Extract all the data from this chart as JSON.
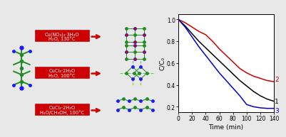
{
  "xlabel": "Time (min)",
  "ylabel": "C/C₀",
  "xlim": [
    0,
    140
  ],
  "ylim": [
    0.15,
    1.05
  ],
  "xticks": [
    0,
    20,
    40,
    60,
    80,
    100,
    120,
    140
  ],
  "yticks": [
    0.2,
    0.4,
    0.6,
    0.8,
    1.0
  ],
  "curve1_color": "#000000",
  "curve2_color": "#cc0000",
  "curve3_color": "#0000cc",
  "curve1_x": [
    0,
    10,
    20,
    30,
    40,
    50,
    60,
    70,
    80,
    90,
    100,
    110,
    120,
    130,
    140
  ],
  "curve1_y": [
    1.0,
    0.94,
    0.87,
    0.8,
    0.74,
    0.68,
    0.62,
    0.56,
    0.5,
    0.44,
    0.39,
    0.34,
    0.3,
    0.27,
    0.25
  ],
  "curve2_x": [
    0,
    10,
    20,
    30,
    40,
    50,
    60,
    70,
    80,
    90,
    100,
    110,
    120,
    130,
    140
  ],
  "curve2_y": [
    1.0,
    0.97,
    0.93,
    0.89,
    0.86,
    0.8,
    0.73,
    0.67,
    0.61,
    0.55,
    0.51,
    0.48,
    0.46,
    0.44,
    0.43
  ],
  "curve3_x": [
    0,
    10,
    20,
    30,
    40,
    50,
    60,
    70,
    80,
    90,
    100,
    110,
    120,
    130,
    140
  ],
  "curve3_y": [
    1.0,
    0.93,
    0.84,
    0.75,
    0.67,
    0.59,
    0.51,
    0.44,
    0.37,
    0.3,
    0.22,
    0.2,
    0.19,
    0.185,
    0.185
  ],
  "label1": "1",
  "label2": "2",
  "label3": "3",
  "bg_color": "#e8e8e8",
  "plot_bg": "#ffffff",
  "text_color": "#000000",
  "arrow_color": "#cc0000",
  "red_box_color": "#cc0000",
  "reagent1_top": "Cu(NO₃)₂·3H₂O",
  "reagent1_bot": "H₂O, 130°C",
  "reagent2_top": "CuCl₂·2H₂O",
  "reagent2_bot": "H₂O, 100°C",
  "reagent3_top": "CuCl₂·2H₂O",
  "reagent3_bot": "H₂O/CH₃OH, 100°C",
  "node_color_green": "#228B22",
  "node_color_blue": "#1a1aff",
  "node_color_red": "#cc0000",
  "bond_color": "#228B22"
}
